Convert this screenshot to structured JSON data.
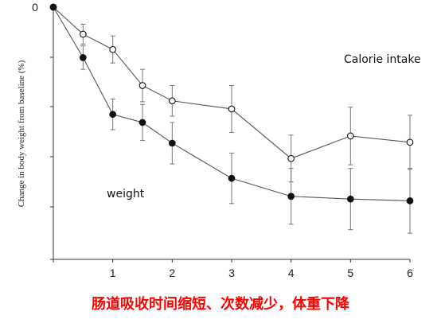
{
  "chart_data": {
    "type": "line",
    "ylabel": "Change in body weight from baseline (%)",
    "x_ticks": [
      "1",
      "2",
      "3",
      "4",
      "5",
      "6"
    ],
    "y_ticks": [
      "0"
    ],
    "xlim": [
      0,
      6
    ],
    "grid": false,
    "series": [
      {
        "name": "Calorie intake",
        "marker": "open-circle",
        "x": [
          0,
          0.5,
          1,
          1.5,
          2,
          3,
          4,
          5,
          6
        ],
        "y": [
          0,
          -3.0,
          -4.7,
          -8.7,
          -10.4,
          -11.3,
          -16.8,
          -14.3,
          -15.0
        ],
        "err": [
          0,
          1.1,
          1.5,
          1.8,
          1.7,
          2.6,
          2.6,
          3.2,
          3.0
        ]
      },
      {
        "name": "weight",
        "marker": "filled-circle",
        "x": [
          0,
          0.5,
          1,
          1.5,
          2,
          3,
          4,
          5,
          6
        ],
        "y": [
          0,
          -5.6,
          -11.9,
          -12.8,
          -15.1,
          -19.0,
          -21.0,
          -21.3,
          -21.5
        ],
        "err": [
          0,
          1.3,
          1.7,
          2.0,
          2.3,
          2.8,
          3.1,
          3.4,
          3.6
        ]
      }
    ],
    "ylim": [
      -28,
      0
    ]
  },
  "caption": "肠道吸收时间缩短、次数减少，体重下降"
}
